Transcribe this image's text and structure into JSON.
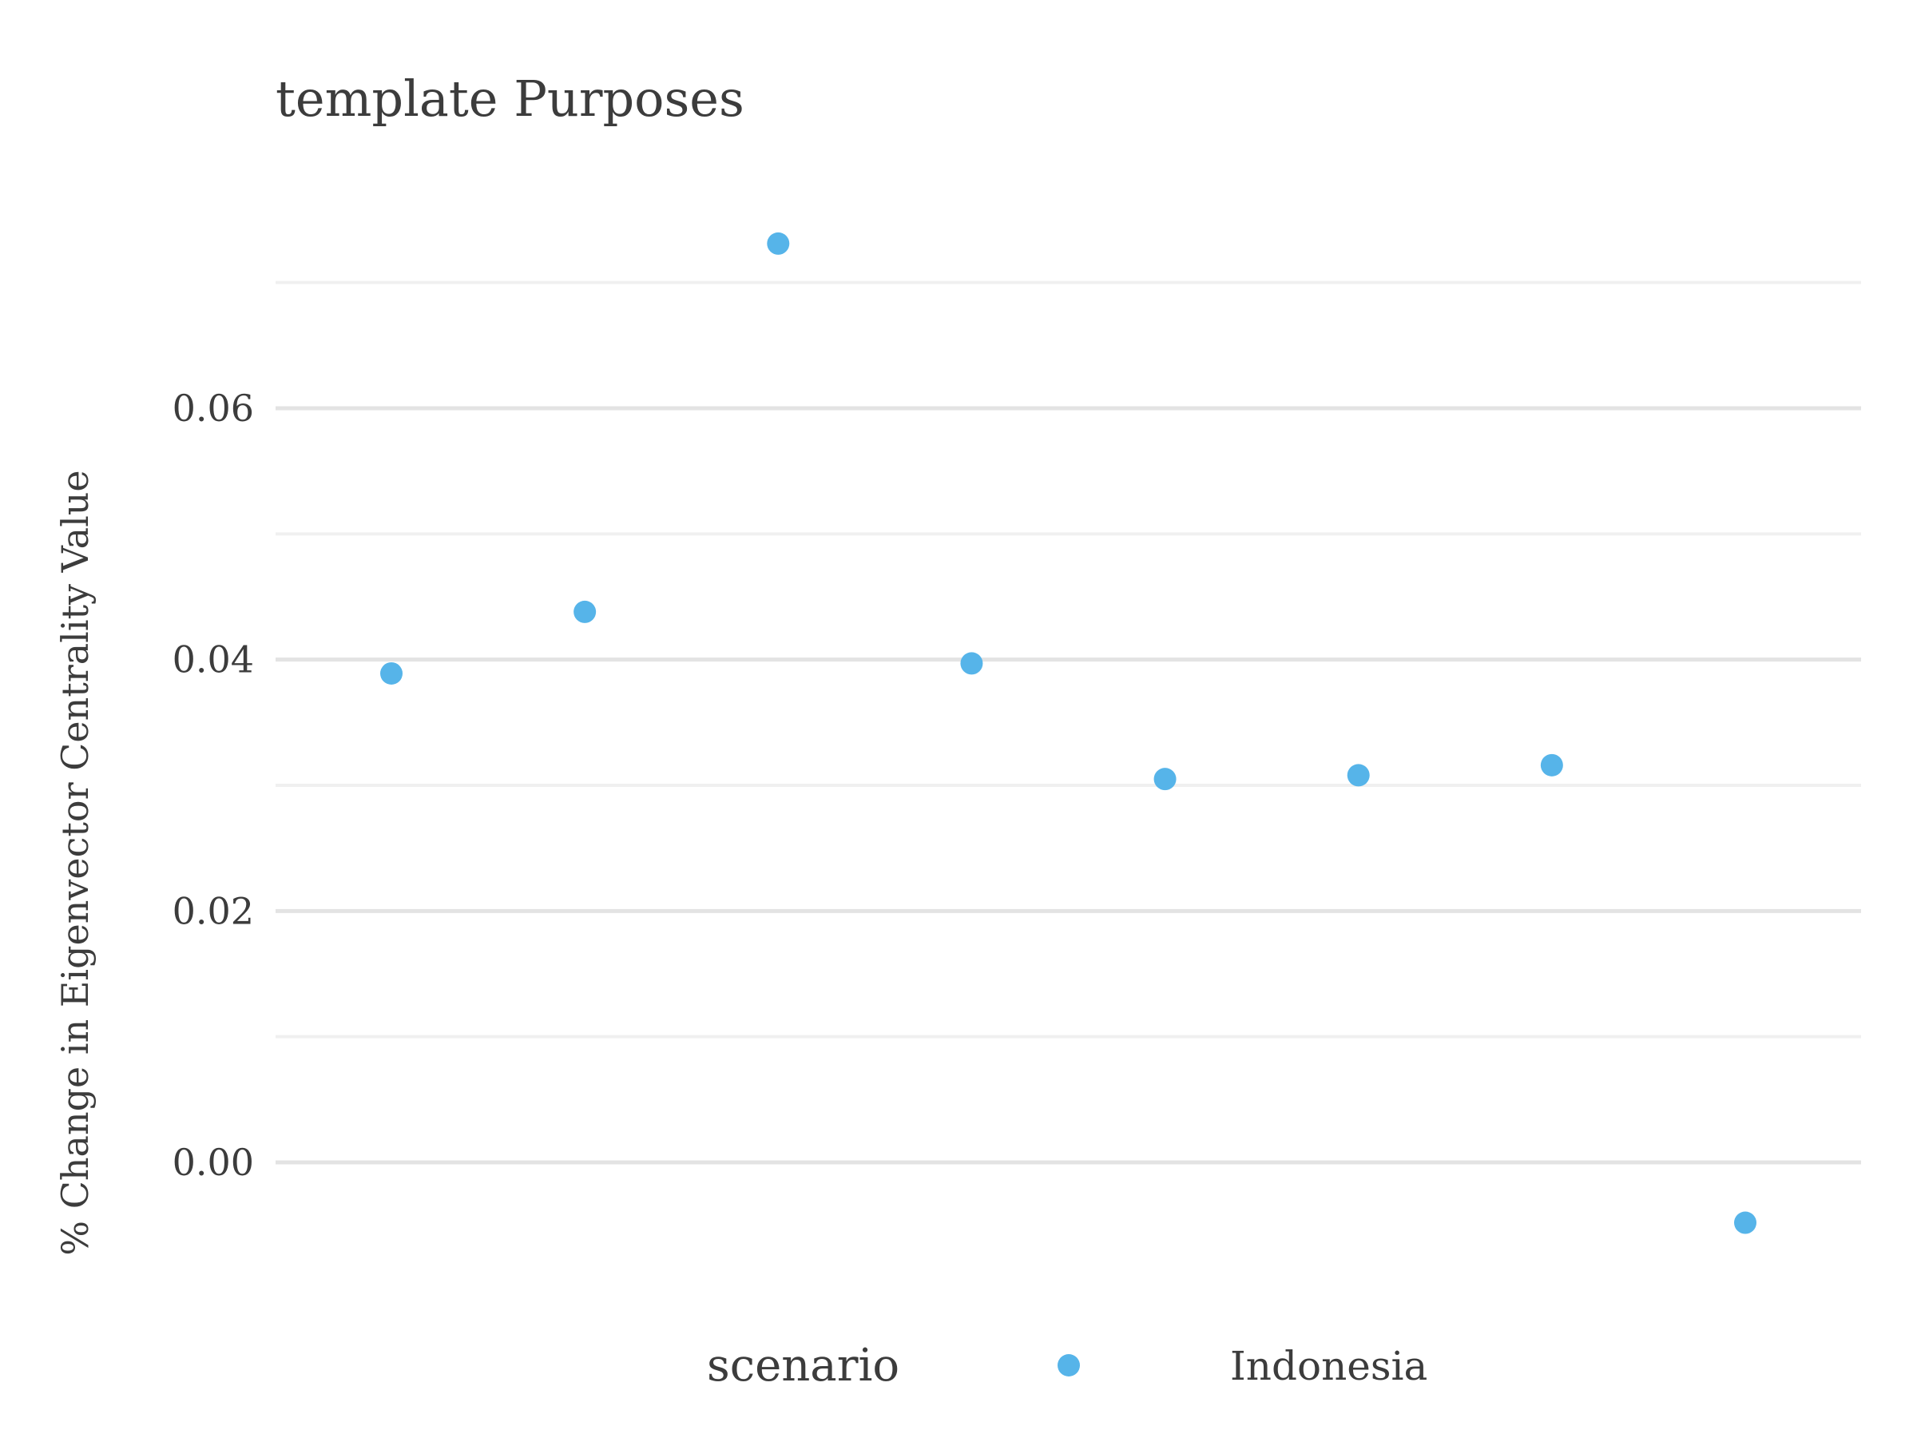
{
  "chart_data": {
    "type": "scatter",
    "title": "template Purposes",
    "xlabel": "",
    "ylabel": "% Change in Eigenvector Centrality Value",
    "ylim": [
      -0.0105,
      0.0745
    ],
    "yticks": [
      0.0,
      0.02,
      0.04,
      0.06
    ],
    "ytick_labels": [
      "0.00",
      "0.02",
      "0.04",
      "0.06"
    ],
    "minor_gridlines": [
      0.01,
      0.03,
      0.05,
      0.07
    ],
    "grid": true,
    "x_ticks_shown": false,
    "legend": {
      "title": "scenario",
      "position": "bottom",
      "entries": [
        "Indonesia"
      ]
    },
    "series": [
      {
        "name": "Indonesia",
        "color": "#56b4e9",
        "x": [
          1,
          2,
          3,
          4,
          5,
          6,
          7,
          8
        ],
        "values": [
          0.0389,
          0.0438,
          0.0731,
          0.0397,
          0.0305,
          0.0308,
          0.0316,
          -0.0048
        ]
      }
    ]
  }
}
